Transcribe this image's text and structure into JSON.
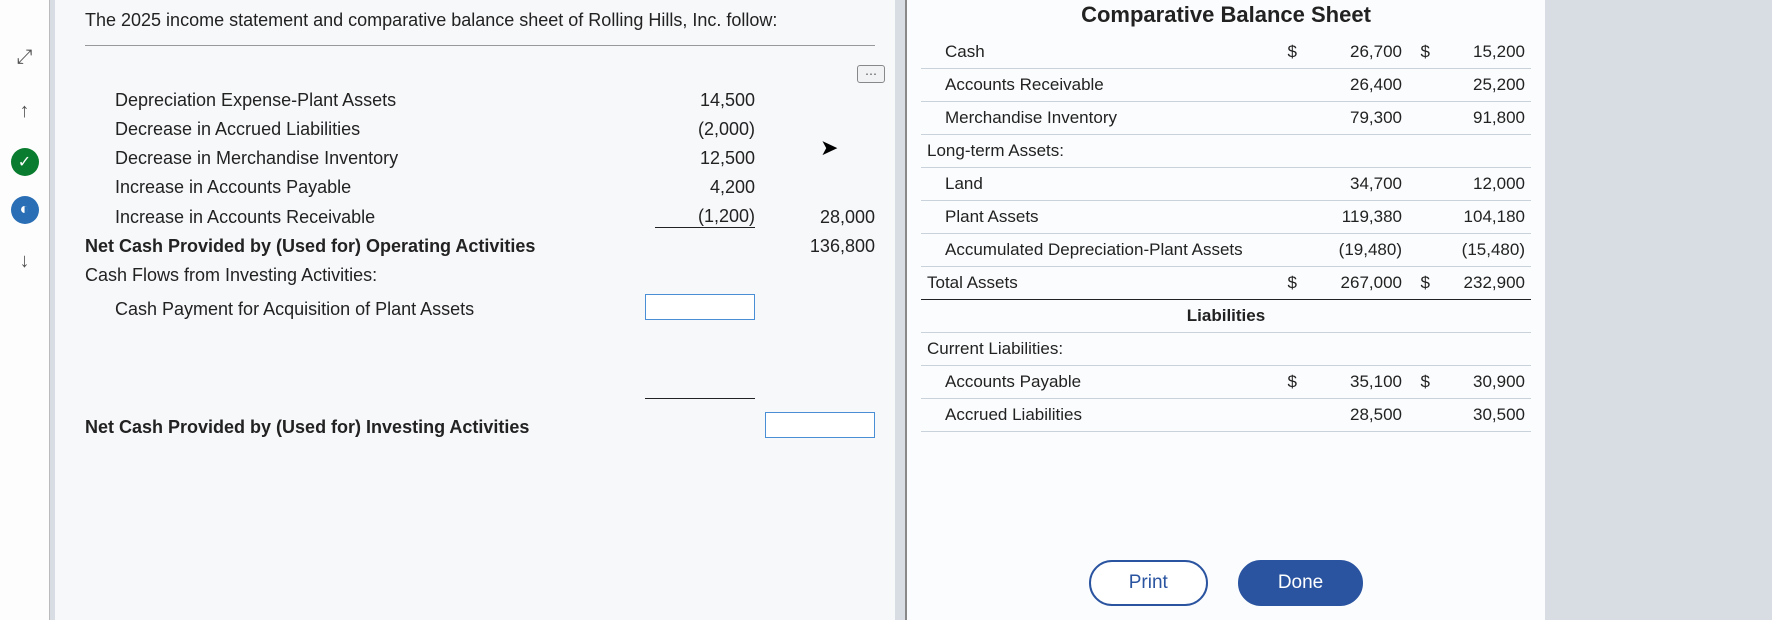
{
  "intro": "The 2025 income statement and comparative balance sheet of Rolling Hills, Inc. follow:",
  "worksheet": {
    "rows": [
      {
        "label": "Depreciation Expense-Plant Assets",
        "indent": true,
        "v1": "14,500",
        "v2": ""
      },
      {
        "label": "Decrease in Accrued Liabilities",
        "indent": true,
        "v1": "(2,000)",
        "v2": ""
      },
      {
        "label": "Decrease in Merchandise Inventory",
        "indent": true,
        "v1": "12,500",
        "v2": ""
      },
      {
        "label": "Increase in Accounts Payable",
        "indent": true,
        "v1": "4,200",
        "v2": ""
      },
      {
        "label": "Increase in Accounts Receivable",
        "indent": true,
        "v1": "(1,200)",
        "v2": "28,000",
        "u1": true
      }
    ],
    "net_op": {
      "label": "Net Cash Provided by (Used for) Operating Activities",
      "v2": "136,800"
    },
    "inv_hdr": "Cash Flows from Investing Activities:",
    "inv_row": {
      "label": "Cash Payment for Acquisition of Plant Assets"
    },
    "net_inv": {
      "label": "Net Cash Provided by (Used for) Investing Activities"
    }
  },
  "balance_title": "Comparative Balance Sheet",
  "bs": {
    "rows": [
      {
        "lbl": "Cash",
        "indent": true,
        "c1": "$",
        "v1": "26,700",
        "c2": "$",
        "v2": "15,200"
      },
      {
        "lbl": "Accounts Receivable",
        "indent": true,
        "c1": "",
        "v1": "26,400",
        "c2": "",
        "v2": "25,200"
      },
      {
        "lbl": "Merchandise Inventory",
        "indent": true,
        "c1": "",
        "v1": "79,300",
        "c2": "",
        "v2": "91,800"
      },
      {
        "lbl": "Long-term Assets:",
        "indent": false,
        "c1": "",
        "v1": "",
        "c2": "",
        "v2": ""
      },
      {
        "lbl": "Land",
        "indent": true,
        "c1": "",
        "v1": "34,700",
        "c2": "",
        "v2": "12,000"
      },
      {
        "lbl": "Plant Assets",
        "indent": true,
        "c1": "",
        "v1": "119,380",
        "c2": "",
        "v2": "104,180"
      },
      {
        "lbl": "Accumulated Depreciation-Plant Assets",
        "indent": true,
        "c1": "",
        "v1": "(19,480)",
        "c2": "",
        "v2": "(15,480)"
      }
    ],
    "total": {
      "lbl": "Total Assets",
      "c1": "$",
      "v1": "267,000",
      "c2": "$",
      "v2": "232,900"
    },
    "liab_hdr": "Liabilities",
    "liab_rows": [
      {
        "lbl": "Current Liabilities:",
        "indent": false,
        "c1": "",
        "v1": "",
        "c2": "",
        "v2": ""
      },
      {
        "lbl": "Accounts Payable",
        "indent": true,
        "c1": "$",
        "v1": "35,100",
        "c2": "$",
        "v2": "30,900"
      },
      {
        "lbl": "Accrued Liabilities",
        "indent": true,
        "c1": "",
        "v1": "28,500",
        "c2": "",
        "v2": "30,500"
      }
    ]
  },
  "buttons": {
    "print": "Print",
    "done": "Done"
  }
}
